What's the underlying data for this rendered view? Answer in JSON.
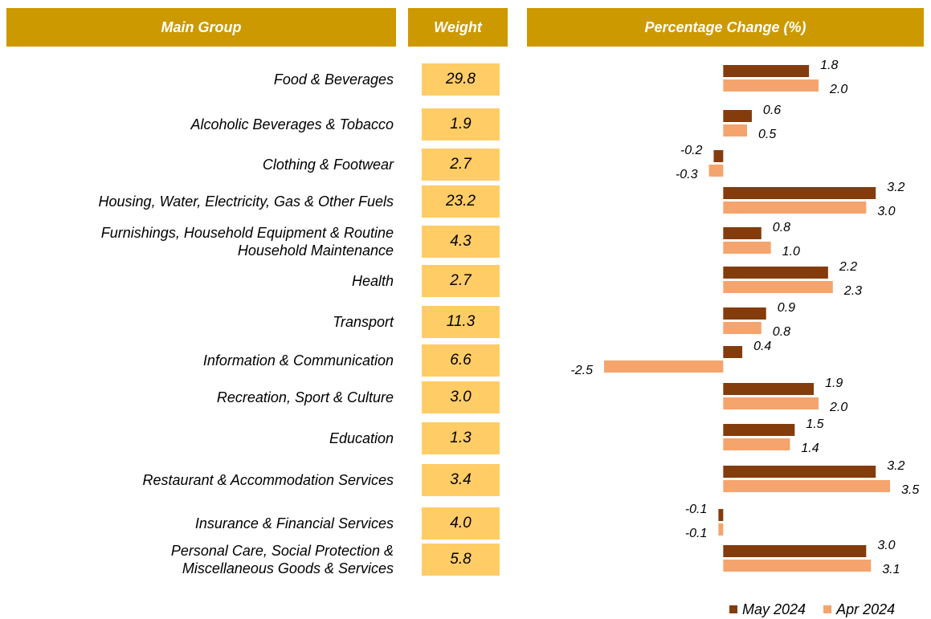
{
  "header": {
    "group": "Main Group",
    "weight": "Weight",
    "change": "Percentage Change (%)"
  },
  "chart_data": {
    "type": "bar",
    "orientation": "horizontal",
    "categories": [
      "Food & Beverages",
      "Alcoholic Beverages & Tobacco",
      "Clothing & Footwear",
      "Housing, Water, Electricity, Gas & Other Fuels",
      "Furnishings, Household Equipment & Routine\nHousehold Maintenance",
      "Health",
      "Transport",
      "Information & Communication",
      "Recreation, Sport & Culture",
      "Education",
      "Restaurant & Accommodation Services",
      "Insurance & Financial Services",
      "Personal Care, Social Protection &\nMiscellaneous Goods & Services"
    ],
    "weights": [
      "29.8",
      "1.9",
      "2.7",
      "23.2",
      "4.3",
      "2.7",
      "11.3",
      "6.6",
      "3.0",
      "1.3",
      "3.4",
      "4.0",
      "5.8"
    ],
    "series": [
      {
        "name": "May 2024",
        "color": "#843c0c",
        "values": [
          1.8,
          0.6,
          -0.2,
          3.2,
          0.8,
          2.2,
          0.9,
          0.4,
          1.9,
          1.5,
          3.2,
          -0.1,
          3.0
        ],
        "value_labels": [
          "1.8",
          "0.6",
          "-0.2",
          "3.2",
          "0.8",
          "2.2",
          "0.9",
          "0.4",
          "1.9",
          "1.5",
          "3.2",
          "-0.1",
          "3.0"
        ]
      },
      {
        "name": "Apr 2024",
        "color": "#f4a46c",
        "values": [
          2.0,
          0.5,
          -0.3,
          3.0,
          1.0,
          2.3,
          0.8,
          -2.5,
          2.0,
          1.4,
          3.5,
          -0.1,
          3.1
        ],
        "value_labels": [
          "2.0",
          "0.5",
          "-0.3",
          "3.0",
          "1.0",
          "2.3",
          "0.8",
          "-2.5",
          "2.0",
          "1.4",
          "3.5",
          "-0.1",
          "3.1"
        ]
      }
    ],
    "header_color": "#cc9900",
    "weight_color": "#ffcc66"
  }
}
